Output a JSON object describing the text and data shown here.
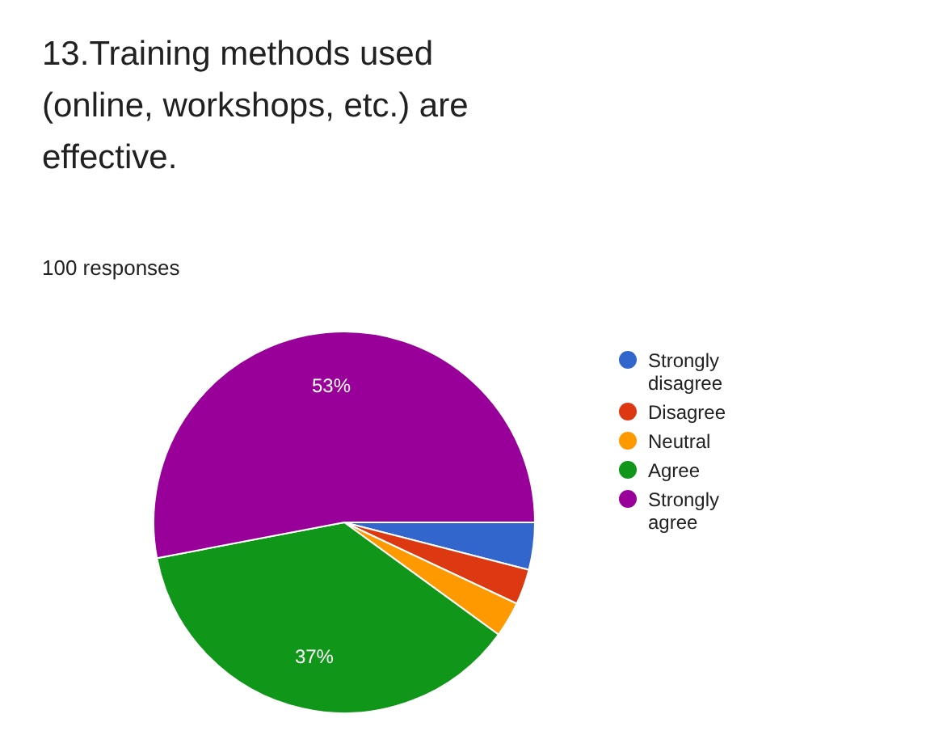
{
  "chart_data": {
    "type": "pie",
    "title": "13.Training methods used (online, workshops, etc.) are effective.",
    "subtitle": "100 responses",
    "categories": [
      "Strongly disagree",
      "Disagree",
      "Neutral",
      "Agree",
      "Strongly agree"
    ],
    "values": [
      4,
      3,
      3,
      37,
      53
    ],
    "colors": [
      "#3366cc",
      "#dc3912",
      "#ff9900",
      "#109618",
      "#990099"
    ],
    "value_labels": [
      null,
      null,
      null,
      "37%",
      "53%"
    ],
    "legend": "right"
  }
}
